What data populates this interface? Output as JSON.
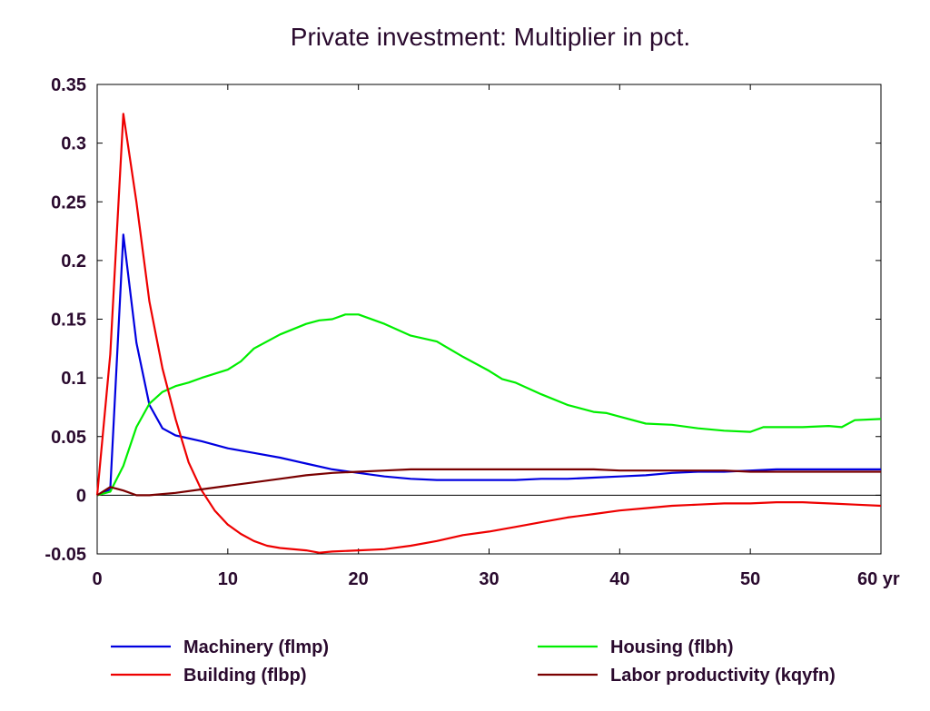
{
  "chart_data": {
    "type": "line",
    "title": "Private investment: Multiplier in pct.",
    "xlabel": "",
    "ylabel": "",
    "x_unit_label": "yr",
    "xlim": [
      0,
      60
    ],
    "ylim": [
      -0.05,
      0.35
    ],
    "x_ticks": [
      0,
      10,
      20,
      30,
      40,
      50,
      60
    ],
    "x_tick_labels": [
      "0",
      "10",
      "20",
      "30",
      "40",
      "50",
      "60 yr"
    ],
    "y_ticks": [
      -0.05,
      0,
      0.05,
      0.1,
      0.15,
      0.2,
      0.25,
      0.3,
      0.35
    ],
    "y_tick_labels": [
      "-0.05",
      "0",
      "0.05",
      "0.1",
      "0.15",
      "0.2",
      "0.25",
      "0.3",
      "0.35"
    ],
    "grid": false,
    "zero_line": true,
    "legend_position": "bottom",
    "series": [
      {
        "name": "Machinery (flmp)",
        "color": "#0000e0",
        "points": [
          [
            0,
            0
          ],
          [
            1,
            0.005
          ],
          [
            2,
            0.222
          ],
          [
            3,
            0.13
          ],
          [
            4,
            0.077
          ],
          [
            5,
            0.057
          ],
          [
            6,
            0.051
          ],
          [
            8,
            0.046
          ],
          [
            10,
            0.04
          ],
          [
            12,
            0.036
          ],
          [
            14,
            0.032
          ],
          [
            16,
            0.027
          ],
          [
            18,
            0.022
          ],
          [
            20,
            0.019
          ],
          [
            22,
            0.016
          ],
          [
            24,
            0.014
          ],
          [
            26,
            0.013
          ],
          [
            28,
            0.013
          ],
          [
            30,
            0.013
          ],
          [
            32,
            0.013
          ],
          [
            34,
            0.014
          ],
          [
            36,
            0.014
          ],
          [
            38,
            0.015
          ],
          [
            40,
            0.016
          ],
          [
            42,
            0.017
          ],
          [
            44,
            0.019
          ],
          [
            46,
            0.02
          ],
          [
            48,
            0.02
          ],
          [
            50,
            0.021
          ],
          [
            52,
            0.022
          ],
          [
            54,
            0.022
          ],
          [
            56,
            0.022
          ],
          [
            58,
            0.022
          ],
          [
            60,
            0.022
          ]
        ]
      },
      {
        "name": "Housing (flbh)",
        "color": "#00ee00",
        "points": [
          [
            0,
            0
          ],
          [
            1,
            0.003
          ],
          [
            2,
            0.025
          ],
          [
            3,
            0.058
          ],
          [
            4,
            0.078
          ],
          [
            5,
            0.088
          ],
          [
            6,
            0.093
          ],
          [
            7,
            0.096
          ],
          [
            8,
            0.1
          ],
          [
            10,
            0.107
          ],
          [
            11,
            0.114
          ],
          [
            12,
            0.125
          ],
          [
            14,
            0.137
          ],
          [
            16,
            0.146
          ],
          [
            17,
            0.149
          ],
          [
            18,
            0.15
          ],
          [
            19,
            0.154
          ],
          [
            20,
            0.154
          ],
          [
            22,
            0.146
          ],
          [
            24,
            0.136
          ],
          [
            26,
            0.131
          ],
          [
            28,
            0.118
          ],
          [
            30,
            0.106
          ],
          [
            31,
            0.099
          ],
          [
            32,
            0.096
          ],
          [
            34,
            0.086
          ],
          [
            36,
            0.077
          ],
          [
            38,
            0.071
          ],
          [
            39,
            0.07
          ],
          [
            40,
            0.067
          ],
          [
            42,
            0.061
          ],
          [
            44,
            0.06
          ],
          [
            46,
            0.057
          ],
          [
            48,
            0.055
          ],
          [
            50,
            0.054
          ],
          [
            51,
            0.058
          ],
          [
            52,
            0.058
          ],
          [
            54,
            0.058
          ],
          [
            56,
            0.059
          ],
          [
            57,
            0.058
          ],
          [
            58,
            0.064
          ],
          [
            60,
            0.065
          ]
        ]
      },
      {
        "name": "Building (flbp)",
        "color": "#ee0000",
        "points": [
          [
            0,
            0
          ],
          [
            1,
            0.12
          ],
          [
            2,
            0.325
          ],
          [
            3,
            0.25
          ],
          [
            4,
            0.165
          ],
          [
            5,
            0.108
          ],
          [
            6,
            0.065
          ],
          [
            7,
            0.028
          ],
          [
            8,
            0.004
          ],
          [
            9,
            -0.013
          ],
          [
            10,
            -0.025
          ],
          [
            11,
            -0.033
          ],
          [
            12,
            -0.039
          ],
          [
            13,
            -0.043
          ],
          [
            14,
            -0.045
          ],
          [
            16,
            -0.047
          ],
          [
            17,
            -0.049
          ],
          [
            18,
            -0.048
          ],
          [
            20,
            -0.047
          ],
          [
            22,
            -0.046
          ],
          [
            24,
            -0.043
          ],
          [
            26,
            -0.039
          ],
          [
            28,
            -0.034
          ],
          [
            30,
            -0.031
          ],
          [
            32,
            -0.027
          ],
          [
            34,
            -0.023
          ],
          [
            36,
            -0.019
          ],
          [
            38,
            -0.016
          ],
          [
            40,
            -0.013
          ],
          [
            42,
            -0.011
          ],
          [
            44,
            -0.009
          ],
          [
            46,
            -0.008
          ],
          [
            48,
            -0.007
          ],
          [
            50,
            -0.007
          ],
          [
            52,
            -0.006
          ],
          [
            54,
            -0.006
          ],
          [
            56,
            -0.007
          ],
          [
            58,
            -0.008
          ],
          [
            60,
            -0.009
          ]
        ]
      },
      {
        "name": "Labor productivity (kqyfn)",
        "color": "#7a0000",
        "points": [
          [
            0,
            0
          ],
          [
            1,
            0.007
          ],
          [
            2,
            0.004
          ],
          [
            3,
            0
          ],
          [
            4,
            0
          ],
          [
            6,
            0.002
          ],
          [
            8,
            0.005
          ],
          [
            10,
            0.008
          ],
          [
            12,
            0.011
          ],
          [
            14,
            0.014
          ],
          [
            16,
            0.017
          ],
          [
            18,
            0.019
          ],
          [
            20,
            0.02
          ],
          [
            22,
            0.021
          ],
          [
            24,
            0.022
          ],
          [
            26,
            0.022
          ],
          [
            28,
            0.022
          ],
          [
            30,
            0.022
          ],
          [
            32,
            0.022
          ],
          [
            34,
            0.022
          ],
          [
            36,
            0.022
          ],
          [
            38,
            0.022
          ],
          [
            40,
            0.021
          ],
          [
            42,
            0.021
          ],
          [
            44,
            0.021
          ],
          [
            46,
            0.021
          ],
          [
            48,
            0.021
          ],
          [
            50,
            0.02
          ],
          [
            52,
            0.02
          ],
          [
            54,
            0.02
          ],
          [
            56,
            0.02
          ],
          [
            58,
            0.02
          ],
          [
            60,
            0.02
          ]
        ]
      }
    ]
  }
}
